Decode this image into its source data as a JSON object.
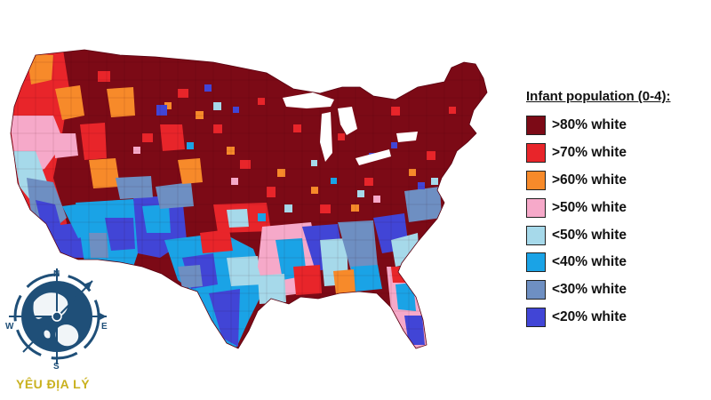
{
  "legend": {
    "title": "Infant population (0-4):",
    "items": [
      {
        "label": ">80% white",
        "color": "#7c0a16"
      },
      {
        "label": ">70% white",
        "color": "#e8252a"
      },
      {
        "label": ">60% white",
        "color": "#f78a2a"
      },
      {
        "label": ">50% white",
        "color": "#f6a9c9"
      },
      {
        "label": "<50% white",
        "color": "#a6d9ea"
      },
      {
        "label": "<40% white",
        "color": "#1aa3e6"
      },
      {
        "label": "<30% white",
        "color": "#6e8fc2"
      },
      {
        "label": "<20% white",
        "color": "#4145d6"
      }
    ]
  },
  "logo": {
    "text": "YÊU ĐỊA LÝ",
    "compass_letters": [
      "N",
      "S",
      "E",
      "W"
    ]
  }
}
